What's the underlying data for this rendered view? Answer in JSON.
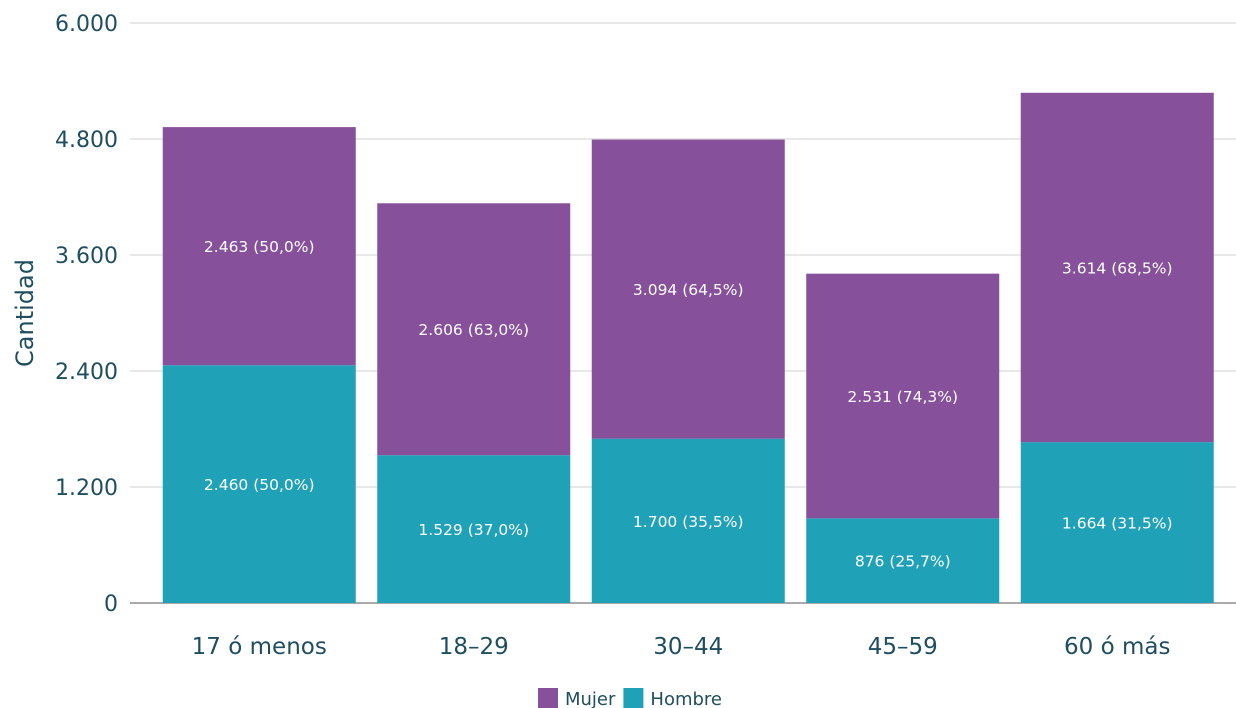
{
  "chart_data": {
    "type": "bar",
    "stacked": true,
    "title": "",
    "xlabel": "",
    "ylabel": "Cantidad",
    "ylim": [
      0,
      6000
    ],
    "yticks": [
      0,
      1200,
      2400,
      3600,
      4800,
      6000
    ],
    "ytick_labels": [
      "0",
      "1.200",
      "2.400",
      "3.600",
      "4.800",
      "6.000"
    ],
    "categories": [
      "17 ó menos",
      "18–29",
      "30–44",
      "45–59",
      "60 ó más"
    ],
    "series": [
      {
        "name": "Hombre",
        "color": "#1fa1b8",
        "values": [
          2460,
          1529,
          1700,
          876,
          1664
        ],
        "labels": [
          "2.460  (50,0%)",
          "1.529  (37,0%)",
          "1.700  (35,5%)",
          "876  (25,7%)",
          "1.664  (31,5%)"
        ]
      },
      {
        "name": "Mujer",
        "color": "#86509a",
        "values": [
          2463,
          2606,
          3094,
          2531,
          3614
        ],
        "labels": [
          "2.463  (50,0%)",
          "2.606  (63,0%)",
          "3.094  (64,5%)",
          "2.531  (74,3%)",
          "3.614  (68,5%)"
        ]
      }
    ],
    "legend_order": [
      "Mujer",
      "Hombre"
    ],
    "legend_position": "bottom-center",
    "grid": true,
    "grid_color": "#d9d9d9",
    "axis_color": "#aaaaaa"
  }
}
